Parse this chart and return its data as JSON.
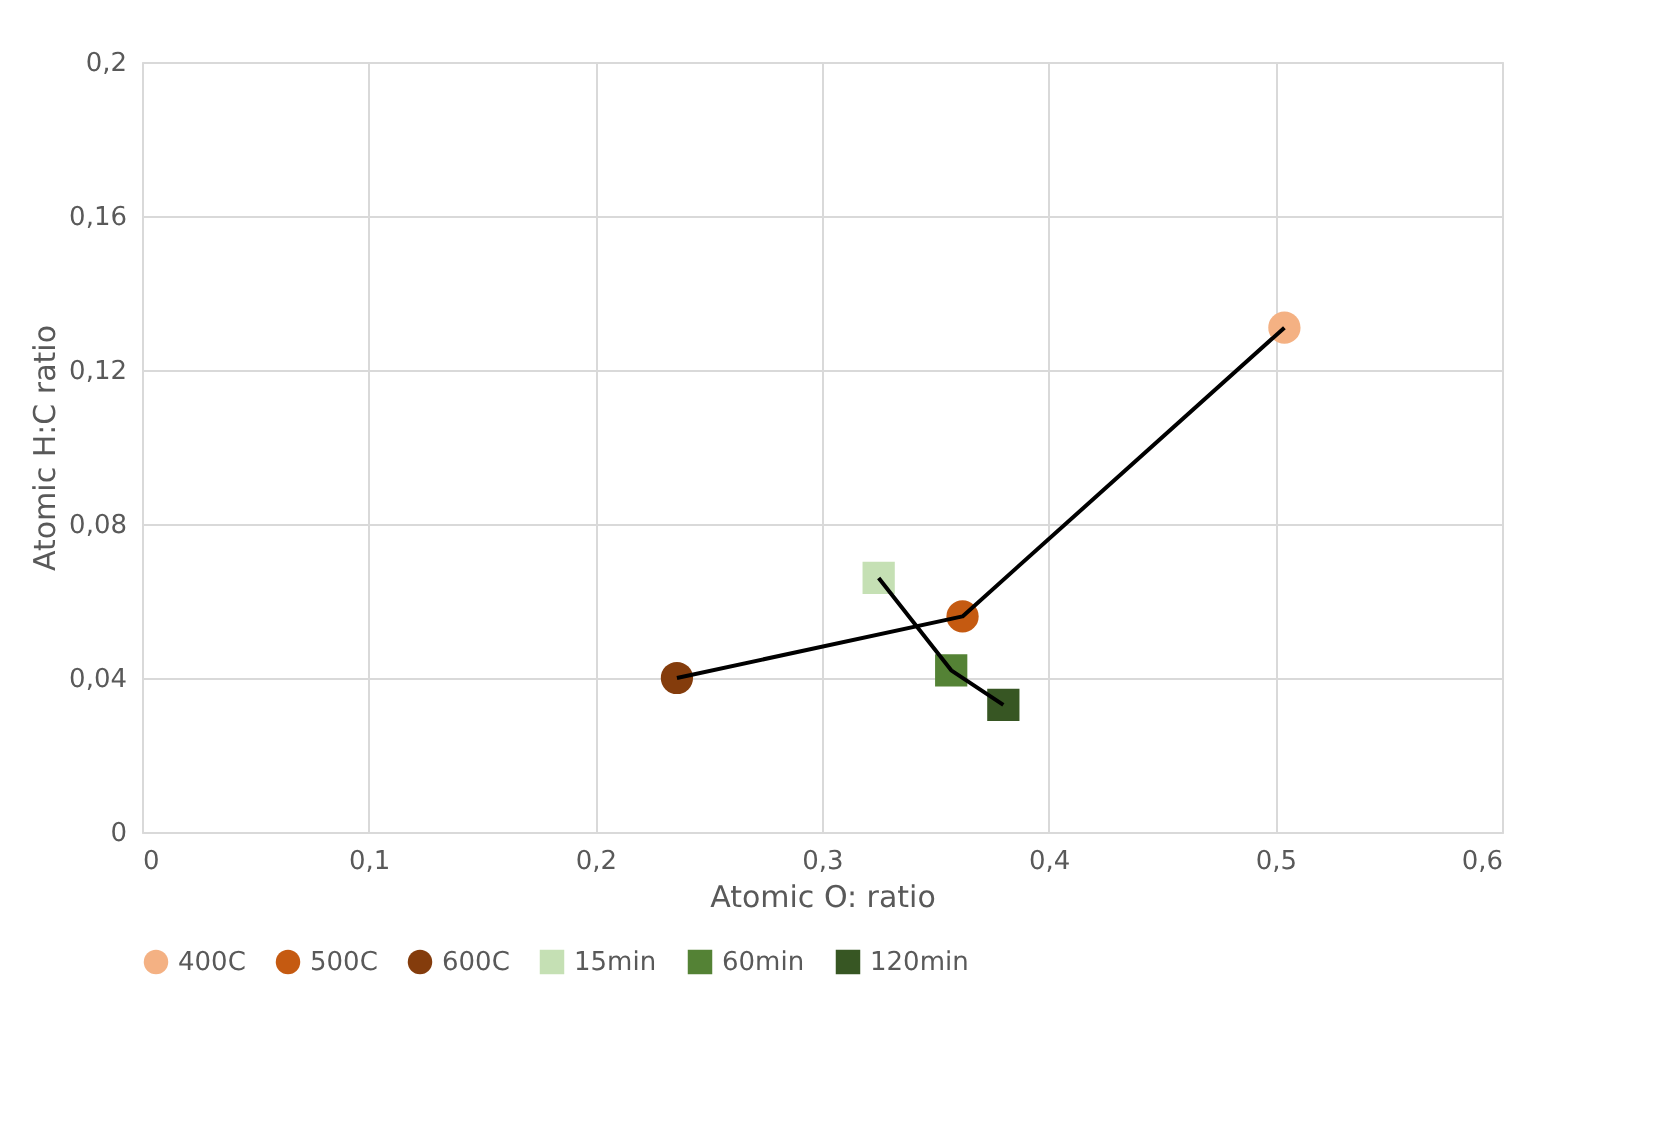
{
  "chart_data": {
    "type": "scatter",
    "xlabel": "Atomic O: ratio",
    "ylabel": "Atomic H:C ratio",
    "xlim": [
      0,
      0.6
    ],
    "ylim": [
      0,
      0.2
    ],
    "xticks": [
      0,
      {
        "value": 0.1,
        "label": "0,1"
      },
      {
        "value": 0.2,
        "label": "0,2"
      },
      {
        "value": 0.3,
        "label": "0,3"
      },
      {
        "value": 0.4,
        "label": "0,4"
      },
      {
        "value": 0.5,
        "label": "0,5"
      },
      {
        "value": 0.6,
        "label": "0,6"
      }
    ],
    "yticks": [
      0,
      {
        "value": 0.04,
        "label": "0,04"
      },
      {
        "value": 0.08,
        "label": "0,08"
      },
      {
        "value": 0.12,
        "label": "0,12"
      },
      {
        "value": 0.16,
        "label": "0,16"
      },
      {
        "value": 0.2,
        "label": "0,2"
      }
    ],
    "grid": true,
    "legend": "bottom",
    "series": [
      {
        "name": "400C",
        "color": "#f4b183",
        "marker": "circle",
        "x": [
          0.504
        ],
        "values": [
          0.131
        ]
      },
      {
        "name": "500C",
        "color": "#c55a11",
        "marker": "circle",
        "x": [
          0.362
        ],
        "values": [
          0.056
        ]
      },
      {
        "name": "600C",
        "color": "#843c0c",
        "marker": "circle",
        "x": [
          0.236
        ],
        "values": [
          0.04
        ]
      },
      {
        "name": "15min",
        "color": "#c5e0b4",
        "marker": "square",
        "x": [
          0.325
        ],
        "values": [
          0.066
        ]
      },
      {
        "name": "60min",
        "color": "#548235",
        "marker": "square",
        "x": [
          0.357
        ],
        "values": [
          0.042
        ]
      },
      {
        "name": "120min",
        "color": "#375623",
        "marker": "square",
        "x": [
          0.38
        ],
        "values": [
          0.033
        ]
      },
      {
        "type": "line",
        "color": "#000000",
        "marker": "none",
        "x": [
          0.504,
          0.362,
          0.236
        ],
        "values": [
          0.131,
          0.056,
          0.04
        ]
      },
      {
        "type": "line",
        "color": "#000000",
        "marker": "none",
        "x": [
          0.325,
          0.357,
          0.38
        ],
        "values": [
          0.066,
          0.042,
          0.033
        ]
      }
    ]
  }
}
